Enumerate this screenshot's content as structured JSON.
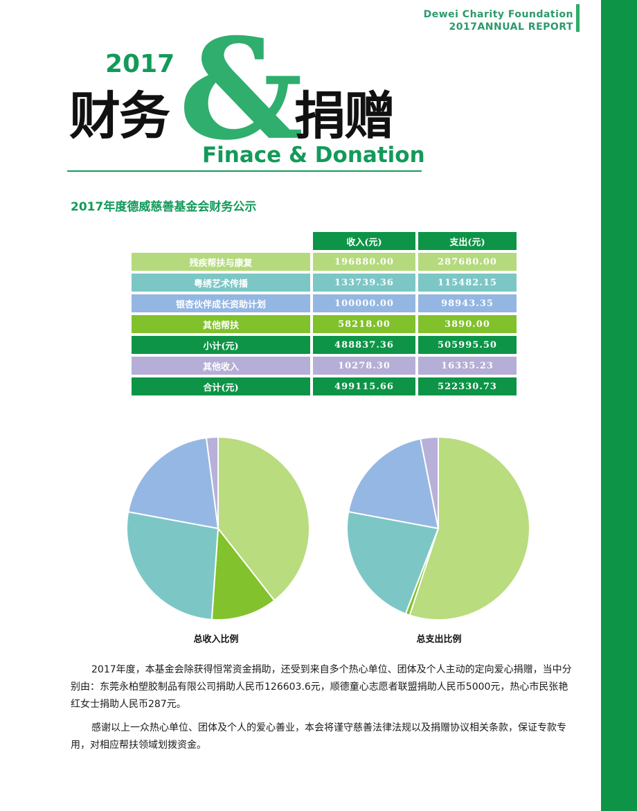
{
  "header": {
    "org": "Dewei Charity Foundation",
    "report": "2017ANNUAL REPORT"
  },
  "title": {
    "year": "2017",
    "cn_left": "财务",
    "amp": "&",
    "cn_right": "捐赠",
    "en": "Finace & Donation"
  },
  "section_title": "2017年度德威慈善基金会财务公示",
  "table": {
    "headers": [
      "",
      "收入(元)",
      "支出(元)"
    ],
    "rows": [
      {
        "label": "残疾帮扶与康复",
        "income": "196880.00",
        "expense": "287680.00",
        "color": "#b5da7d",
        "text_color": "#ffffff"
      },
      {
        "label": "粤绣艺术传播",
        "income": "133739.36",
        "expense": "115482.15",
        "color": "#7cc6c6",
        "text_color": "#ffffff"
      },
      {
        "label": "银杏伙伴成长资助计划",
        "income": "100000.00",
        "expense": "98943.35",
        "color": "#94b6e2",
        "text_color": "#ffffff"
      },
      {
        "label": "其他帮扶",
        "income": "58218.00",
        "expense": "3890.00",
        "color": "#81c12c",
        "text_color": "#ffffff"
      },
      {
        "label": "小计(元)",
        "income": "488837.36",
        "expense": "505995.50",
        "color": "#0d9447",
        "text_color": "#ffffff"
      },
      {
        "label": "其他收入",
        "income": "10278.30",
        "expense": "16335.23",
        "color": "#b5aed6",
        "text_color": "#ffffff"
      },
      {
        "label": "合计(元)",
        "income": "499115.66",
        "expense": "522330.73",
        "color": "#0d9447",
        "text_color": "#ffffff"
      }
    ]
  },
  "chart_data": [
    {
      "type": "pie",
      "caption": "总收入比例",
      "categories": [
        "残疾帮扶与康复",
        "其他帮扶",
        "粤绣艺术传播",
        "银杏伙伴成长资助计划",
        "其他收入"
      ],
      "values": [
        196880.0,
        58218.0,
        133739.36,
        100000.0,
        10278.3
      ],
      "colors": [
        "#b8dc7e",
        "#82c22d",
        "#7dc6c6",
        "#95b7e3",
        "#b7b0d8"
      ]
    },
    {
      "type": "pie",
      "caption": "总支出比例",
      "categories": [
        "残疾帮扶与康复",
        "其他帮扶",
        "粤绣艺术传播",
        "银杏伙伴成长资助计划",
        "其他收入"
      ],
      "values": [
        287680.0,
        3890.0,
        115482.15,
        98943.35,
        16335.23
      ],
      "colors": [
        "#b8dc7e",
        "#82c22d",
        "#7dc6c6",
        "#95b7e3",
        "#b7b0d8"
      ]
    }
  ],
  "paragraphs": [
    "2017年度，本基金会除获得恒常资金捐助，还受到来自多个热心单位、团体及个人主动的定向爱心捐赠，当中分别由：东莞永柏塑胶制品有限公司捐助人民币126603.6元，顺德童心志愿者联盟捐助人民币5000元，热心市民张艳红女士捐助人民币287元。",
    "感谢以上一众热心单位、团体及个人的爱心善业，本会将谨守慈善法律法规以及捐赠协议相关条款，保证专款专用，对相应帮扶领域划拨资金。"
  ]
}
